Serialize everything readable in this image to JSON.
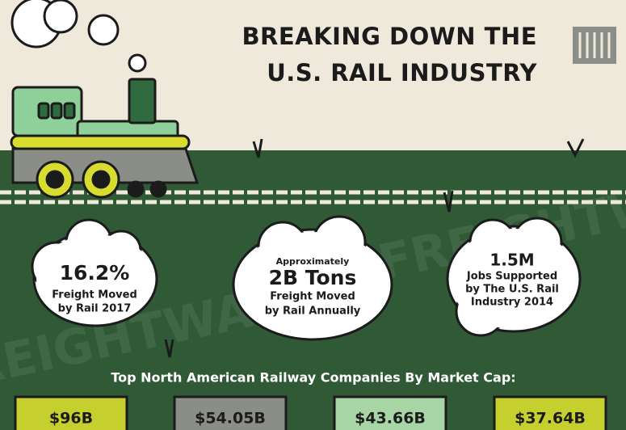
{
  "header": {
    "title_lines": [
      "BREAKING DOWN THE",
      "U.S. RAIL INDUSTRY"
    ]
  },
  "watermark": "FREIGHTWAVES",
  "stats": [
    {
      "value": "16.2%",
      "lines": [
        "Freight Moved",
        "by Rail 2017"
      ]
    },
    {
      "prefix": "Approximately",
      "value": "2B Tons",
      "lines": [
        "Freight Moved",
        "by Rail Annually"
      ]
    },
    {
      "value": "1.5M",
      "lines": [
        "Jobs Supported",
        "by The U.S. Rail",
        "Industry 2014"
      ]
    }
  ],
  "market_cap": {
    "title": "Top North American Railway Companies By Market Cap:",
    "boxes": [
      "$96B",
      "$54.05B",
      "$43.66B",
      "$37.64B"
    ]
  }
}
